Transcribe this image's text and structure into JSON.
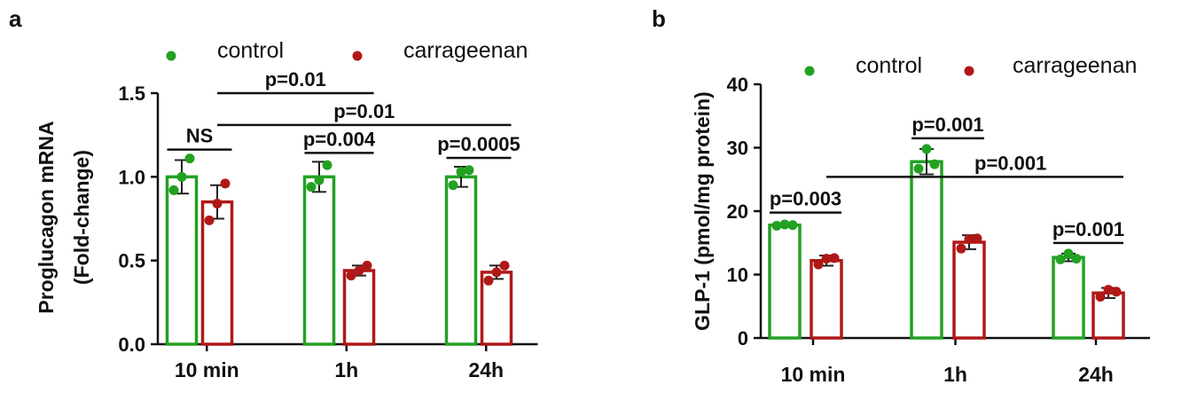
{
  "chart_data": [
    {
      "panel_label": "a",
      "type": "bar",
      "ylabel_lines": [
        "Proglucagon mRNA",
        "(Fold-change)"
      ],
      "xlabel": "",
      "categories": [
        "10 min",
        "1h",
        "24h"
      ],
      "ylim": [
        0,
        1.5
      ],
      "yticks": [
        0.0,
        0.5,
        1.0,
        1.5
      ],
      "ytick_labels": [
        "0.0",
        "0.5",
        "1.0",
        "1.5"
      ],
      "legend": {
        "placement": "top"
      },
      "series": [
        {
          "name": "control",
          "color": "#22a122",
          "values": [
            1.0,
            1.0,
            1.0
          ],
          "errors": [
            0.1,
            0.09,
            0.06
          ],
          "points": [
            [
              0.92,
              1.0,
              1.11
            ],
            [
              0.94,
              0.98,
              1.07
            ],
            [
              0.95,
              1.03,
              1.04
            ]
          ]
        },
        {
          "name": "carrageenan",
          "color": "#b01818",
          "values": [
            0.85,
            0.44,
            0.43
          ],
          "errors": [
            0.1,
            0.03,
            0.04
          ],
          "points": [
            [
              0.74,
              0.84,
              0.96
            ],
            [
              0.41,
              0.44,
              0.47
            ],
            [
              0.38,
              0.43,
              0.47
            ]
          ]
        }
      ],
      "annotations": [
        {
          "text": "NS",
          "underline": true,
          "kind": "within",
          "group": 0
        },
        {
          "text": "p=0.004",
          "underline": true,
          "kind": "within",
          "group": 1
        },
        {
          "text": "p=0.0005",
          "underline": true,
          "kind": "within",
          "group": 2
        },
        {
          "text": "p=0.01",
          "kind": "span",
          "from": [
            0,
            1
          ],
          "to": [
            1,
            1
          ],
          "y": 1.5
        },
        {
          "text": "p=0.01",
          "kind": "span",
          "from": [
            0,
            1
          ],
          "to": [
            2,
            1
          ],
          "y": 1.31
        }
      ]
    },
    {
      "panel_label": "b",
      "type": "bar",
      "ylabel_lines": [
        "GLP-1 (pmol/mg protein)"
      ],
      "xlabel": "",
      "categories": [
        "10 min",
        "1h",
        "24h"
      ],
      "ylim": [
        0,
        40
      ],
      "yticks": [
        0,
        10,
        20,
        30,
        40
      ],
      "ytick_labels": [
        "0",
        "10",
        "20",
        "30",
        "40"
      ],
      "legend": {
        "placement": "top"
      },
      "series": [
        {
          "name": "control",
          "color": "#22a122",
          "values": [
            17.8,
            27.8,
            12.7
          ],
          "errors": [
            0.3,
            2.0,
            0.6
          ],
          "points": [
            [
              17.7,
              17.9,
              17.8
            ],
            [
              26.7,
              29.8,
              27.4
            ],
            [
              12.4,
              13.3,
              12.5
            ]
          ]
        },
        {
          "name": "carrageenan",
          "color": "#b01818",
          "values": [
            12.2,
            15.1,
            7.1
          ],
          "errors": [
            0.8,
            1.1,
            0.8
          ],
          "points": [
            [
              11.6,
              12.5,
              12.6
            ],
            [
              14.1,
              15.6,
              15.7
            ],
            [
              6.5,
              7.6,
              7.3
            ]
          ]
        }
      ],
      "annotations": [
        {
          "text": "p=0.003",
          "underline": true,
          "kind": "within",
          "group": 0
        },
        {
          "text": "p=0.001",
          "underline": true,
          "kind": "within",
          "group": 1
        },
        {
          "text": "p=0.001",
          "underline": true,
          "kind": "within",
          "group": 2
        },
        {
          "text": "p=0.001",
          "kind": "span",
          "from": [
            0,
            1
          ],
          "to": [
            2,
            1
          ],
          "y": 25.4
        }
      ]
    }
  ]
}
